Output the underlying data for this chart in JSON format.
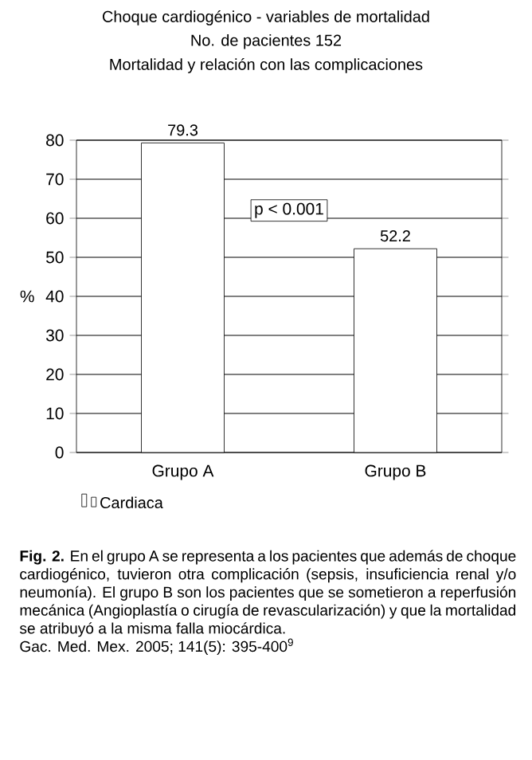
{
  "chart_data": {
    "type": "bar",
    "title": "Choque cardiogénico - variables de mortalidad",
    "subtitle": "No. de pacientes 152",
    "ylabel": "%",
    "categories": [
      "Grupo A",
      "Grupo B"
    ],
    "series": [
      {
        "name": "Cardiaca",
        "color": "#ffffff",
        "values": [
          79.3,
          52.2
        ]
      }
    ],
    "ylim": [
      0,
      80
    ],
    "yticks": [
      0,
      10,
      20,
      30,
      40,
      50,
      60,
      70,
      80
    ],
    "grid": "y",
    "legend": "bottom",
    "data_labels": true,
    "annotations": [
      "Mortalidad y relación con las complicaciones",
      "p < 0.001",
      "**Fig. 2.** En el grupo A se representa a los pacientes que además de choque cardiogénico, tuvieron otra complicación (sepsis, insuficiencia renal y/o neumonía). El grupo B son los pacientes que se sometieron a reperfusión mecánica (Angioplastía o cirugía de revascularización) y que la mortalidad se atribuyó a la misma falla miocárdica.",
      "Gac. Med. Mex. 2005; 141(5): 395-400$^{9}$"
    ]
  }
}
